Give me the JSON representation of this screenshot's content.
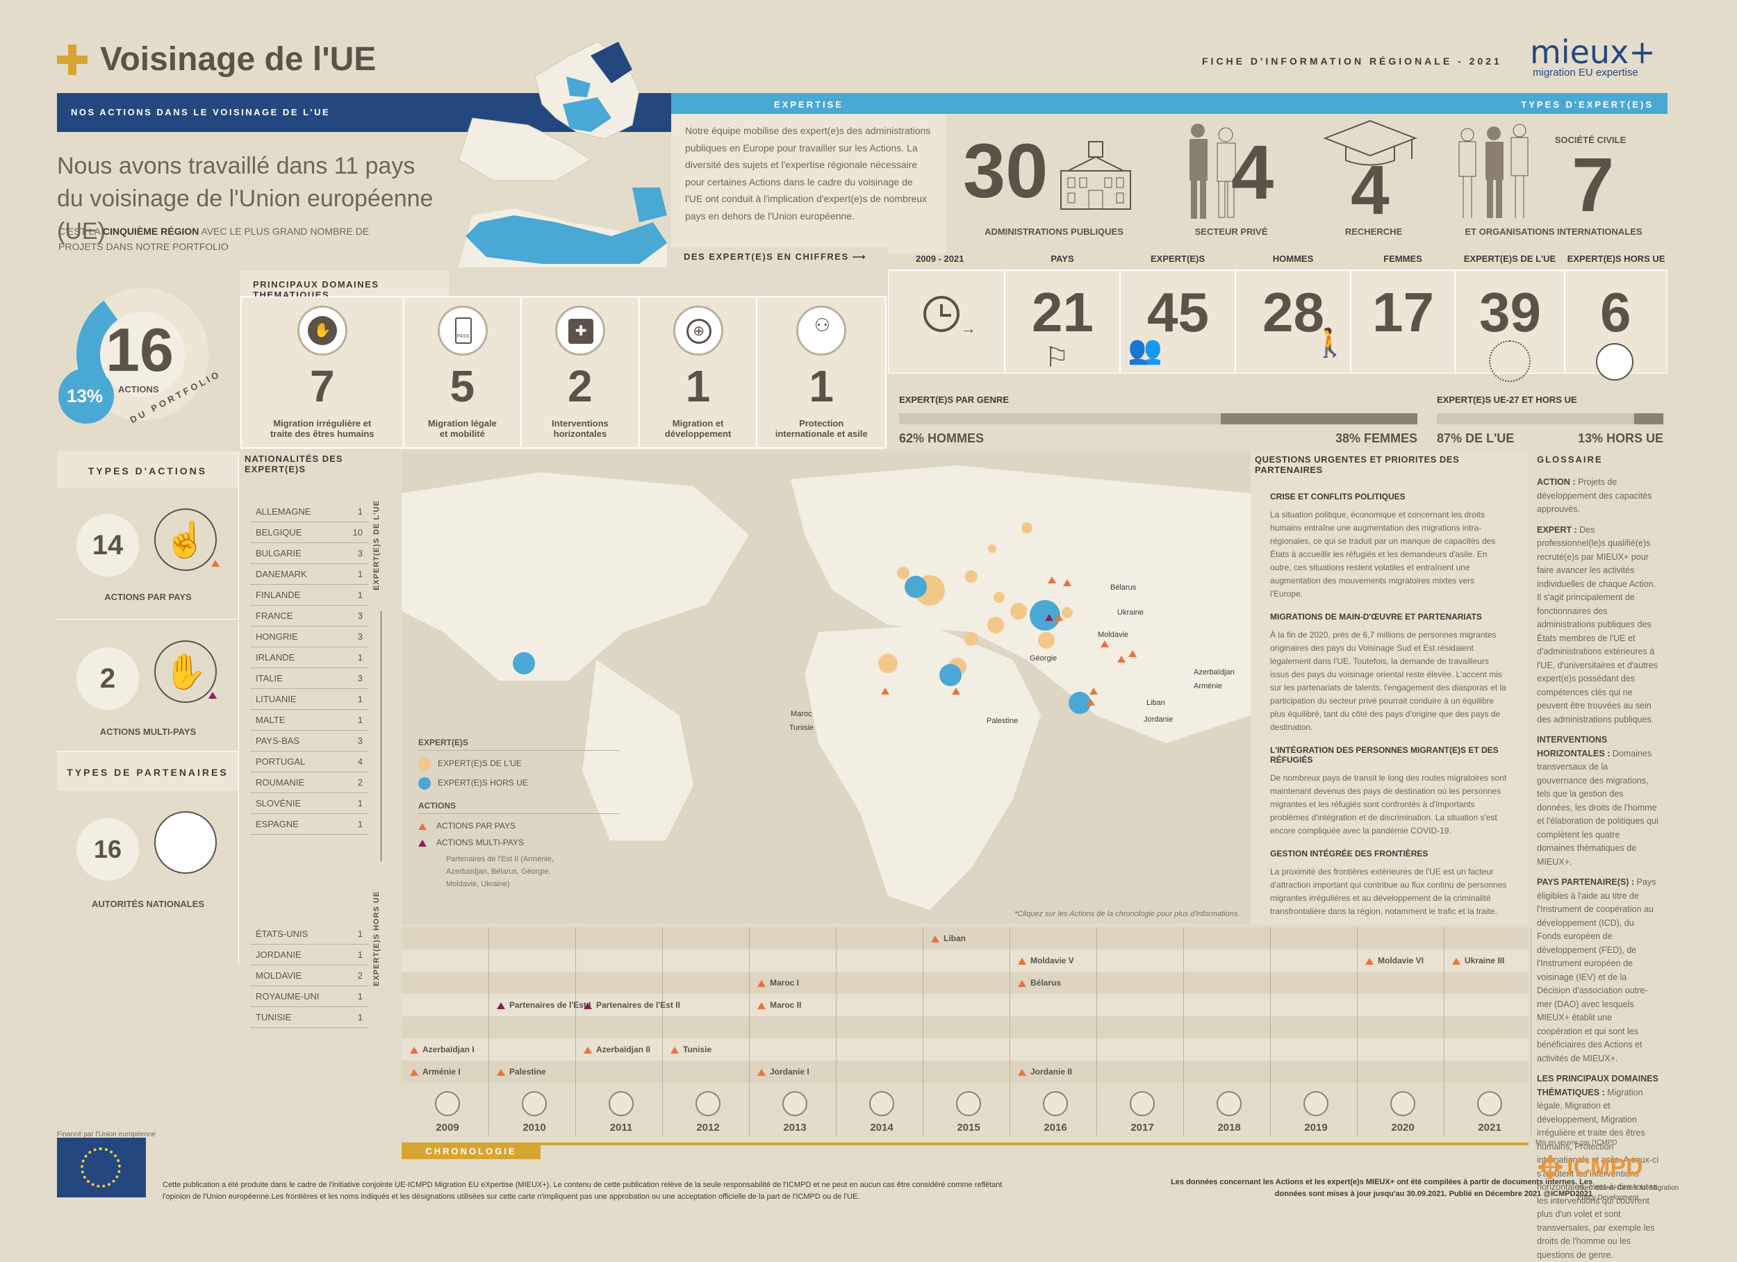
{
  "header": {
    "title": "Voisinage de l'UE",
    "fiche": "FICHE D'INFORMATION RÉGIONALE - 2021",
    "logo_text": "mieux+",
    "logo_sub": "migration EU expertise"
  },
  "intro": {
    "banner": "NOS ACTIONS DANS LE VOISINAGE DE L'UE",
    "headline": "Nous avons travaillé dans 11 pays du voisinage de l'Union européenne (UE)",
    "sub1": "C'EST LA ",
    "sub_bold": "CINQUIÈME RÉGION",
    "sub2": " AVEC LE PLUS GRAND NOMBRE DE PROJETS DANS NOTRE PORTFOLIO"
  },
  "expertise": {
    "title": "EXPERTISE",
    "text": "Notre équipe mobilise des expert(e)s des administrations publiques en Europe pour travailler sur les Actions. La diversité des sujets et l'expertise régionale nécessaire pour certaines Actions dans le cadre du voisinage de l'UE ont conduit à l'implication d'expert(e)s de nombreux pays en dehors de l'Union européenne.",
    "chiffres": "DES EXPERT(E)S EN CHIFFRES"
  },
  "types_experts": {
    "title": "TYPES D'EXPERT(E)S",
    "items": [
      {
        "value": "30",
        "label": "ADMINISTRATIONS PUBLIQUES"
      },
      {
        "value": "4",
        "label": "SECTEUR PRIVÉ"
      },
      {
        "value": "4",
        "label": "RECHERCHE"
      },
      {
        "value": "7",
        "label": "ET ORGANISATIONS INTERNATIONALES",
        "top": "SOCIÉTÉ CIVILE"
      }
    ]
  },
  "portfolio": {
    "value": "16",
    "label": "ACTIONS",
    "pct": "13%",
    "arc": "DU PORTFOLIO",
    "fraction": 0.13
  },
  "domaines": {
    "title": "PRINCIPAUX DOMAINES THEMATIQUES",
    "items": [
      {
        "value": "7",
        "label": "Migration irrégulière et traite des êtres humains",
        "icon": "stop-hand-icon"
      },
      {
        "value": "5",
        "label": "Migration légale et mobilité",
        "icon": "passport-icon"
      },
      {
        "value": "2",
        "label": "Interventions horizontales",
        "icon": "puzzle-icon"
      },
      {
        "value": "1",
        "label": "Migration et développement",
        "icon": "globe-cycle-icon"
      },
      {
        "value": "1",
        "label": "Protection internationale et asile",
        "icon": "family-hand-icon"
      }
    ]
  },
  "chiffres": {
    "period": "2009 - 2021",
    "cols": [
      {
        "label": "PAYS",
        "value": "21"
      },
      {
        "label": "EXPERT(E)S",
        "value": "45"
      },
      {
        "label": "HOMMES",
        "value": "28"
      },
      {
        "label": "FEMMES",
        "value": "17"
      },
      {
        "label": "EXPERT(E)S DE L'UE",
        "value": "39"
      },
      {
        "label": "EXPERT(E)S HORS UE",
        "value": "6"
      }
    ],
    "genre_title": "EXPERT(E)S PAR GENRE",
    "genre_left": "62% HOMMES",
    "genre_right": "38% FEMMES",
    "genre_frac": 0.62,
    "ue_title": "EXPERT(E)S UE-27 ET HORS UE",
    "ue_left": "87% DE L'UE",
    "ue_right": "13% HORS UE",
    "ue_frac": 0.87
  },
  "types_actions": {
    "title": "TYPES D'ACTIONS",
    "items": [
      {
        "value": "14",
        "label": "ACTIONS PAR PAYS"
      },
      {
        "value": "2",
        "label": "ACTIONS MULTI-PAYS"
      }
    ],
    "partners_title": "TYPES DE PARTENAIRES",
    "partners": {
      "value": "16",
      "label": "AUTORITÉS NATIONALES"
    }
  },
  "nationalites": {
    "title": "NATIONALITÉS DES EXPERT(E)S",
    "ue_label": "EXPERT(E)S DE L'UE",
    "hors_label": "EXPERT(E)S HORS UE",
    "ue": [
      [
        "ALLEMAGNE",
        "1"
      ],
      [
        "BELGIQUE",
        "10"
      ],
      [
        "BULGARIE",
        "3"
      ],
      [
        "DANEMARK",
        "1"
      ],
      [
        "FINLANDE",
        "1"
      ],
      [
        "FRANCE",
        "3"
      ],
      [
        "HONGRIE",
        "3"
      ],
      [
        "IRLANDE",
        "1"
      ],
      [
        "ITALIE",
        "3"
      ],
      [
        "LITUANIE",
        "1"
      ],
      [
        "MALTE",
        "1"
      ],
      [
        "PAYS-BAS",
        "3"
      ],
      [
        "PORTUGAL",
        "4"
      ],
      [
        "ROUMANIE",
        "2"
      ],
      [
        "SLOVÉNIE",
        "1"
      ],
      [
        "ESPAGNE",
        "1"
      ]
    ],
    "hors": [
      [
        "ÉTATS-UNIS",
        "1"
      ],
      [
        "JORDANIE",
        "1"
      ],
      [
        "MOLDAVIE",
        "2"
      ],
      [
        "ROYAUME-UNI",
        "1"
      ],
      [
        "TUNISIE",
        "1"
      ]
    ]
  },
  "map": {
    "legend_experts": "EXPERT(E)S",
    "legend_ue": "EXPERT(E)S DE L'UE",
    "legend_hors": "EXPERT(E)S HORS UE",
    "legend_actions": "ACTIONS",
    "legend_pays": "ACTIONS PAR PAYS",
    "legend_multi": "ACTIONS MULTI-PAYS",
    "legend_note": "Partenaires de l'Est II (Arménie, Azerbaïdjan, Bélarus, Géorgie, Moldavie, Ukraine)",
    "labels": [
      "Bélarus",
      "Ukraine",
      "Moldavie",
      "Géorgie",
      "Azerbaïdjan",
      "Arménie",
      "Liban",
      "Jordanie",
      "Palestine",
      "Maroc",
      "Tunisie"
    ],
    "footnote": "*Cliquez sur les Actions de la chronologie pour plus d'informations."
  },
  "questions": {
    "title": "QUESTIONS URGENTES ET PRIORITES DES PARTENAIRES",
    "sections": [
      {
        "h": "CRISE ET CONFLITS POLITIQUES",
        "t": "La situation politique, économique et concernant les droits humains entraîne une augmentation des migrations intra-régionales, ce qui se traduit par un manque de capacités des États à accueillir les réfugiés et les demandeurs d'asile. En outre, ces situations restent volatiles et entraînent une augmentation des mouvements migratoires mixtes vers l'Europe."
      },
      {
        "h": "MIGRATIONS DE MAIN-D'ŒUVRE ET PARTENARIATS",
        "t": "À la fin de 2020, près de 6,7 millions de personnes migrantes originaires des pays du Voisinage Sud et Est résidaient légalement dans l'UE. Toutefois, la demande de travailleurs issus des pays du voisinage oriental reste élevée. L'accent mis sur les partenariats de talents, l'engagement des diasporas et la participation du secteur privé pourrait conduire à un équilibre plus équilibré, tant du côté des pays d'origine que des pays de destination."
      },
      {
        "h": "L'INTÉGRATION DES PERSONNES MIGRANT(E)S ET DES RÉFUGIÉS",
        "t": "De nombreux pays de transit le long des routes migratoires sont maintenant devenus des pays de destination où les personnes migrantes et les réfugiés sont confrontés à d'importants problèmes d'intégration et de discrimination. La situation s'est encore compliquée avec la pandémie COVID-19."
      },
      {
        "h": "GESTION INTÉGRÉE DES FRONTIÈRES",
        "t": "La proximité des frontières extérieures de l'UE est un facteur d'attraction important qui contribue au flux continu de personnes migrantes irrégulières et au développement de la criminalité transfrontalière dans la région, notamment le trafic et la traite."
      }
    ]
  },
  "glossaire": {
    "title": "GLOSSAIRE",
    "entries": [
      {
        "k": "ACTION :",
        "v": " Projets de développement des capacités approuvés."
      },
      {
        "k": "EXPERT :",
        "v": " Des professionnel(le)s qualifié(e)s recruté(e)s par MIEUX+ pour faire avancer les activités individuelles de chaque Action. Il s'agit principalement de fonctionnaires des administrations publiques des États membres de l'UE et d'administrations extérieures à l'UE, d'universitaires et d'autres expert(e)s possédant des compétences clés qui ne peuvent être trouvées au sein des administrations publiques."
      },
      {
        "k": "INTERVENTIONS HORIZONTALES :",
        "v": " Domaines transversaux de la gouvernance des migrations, tels que la gestion des données, les droits de l'homme et l'élaboration de politiques qui complètent les quatre domaines thématiques de MIEUX+."
      },
      {
        "k": "PAYS PARTENAIRE(S) :",
        "v": " Pays éligibles à l'aide au titre de l'Instrument de coopération au développement (ICD), du Fonds européen de développement (FED), de l'Instrument européen de voisinage (IEV) et de la Décision d'association outre-mer (DAO) avec lesquels MIEUX+ établit une coopération et qui sont les bénéficiaires des Actions et activités de MIEUX+."
      },
      {
        "k": "LES PRINCIPAUX DOMAINES THÉMATIQUES :",
        "v": " Migration légale, Migration et développement, Migration irrégulière et traite des êtres humains, Protection internationale et asile. A ceux-ci s'ajoutent les interventions horizontales, c'est-à-dire toutes les interventions qui couvrent plus d'un volet et sont transversales, par exemple les droits de l'homme ou les questions de genre."
      }
    ]
  },
  "chronologie": {
    "title": "CHRONOLOGIE",
    "years": [
      "2009",
      "2010",
      "2011",
      "2012",
      "2013",
      "2014",
      "2015",
      "2016",
      "2017",
      "2018",
      "2019",
      "2020",
      "2021"
    ],
    "events": [
      {
        "year": 0,
        "row": 5,
        "label": "Azerbaïdjan I",
        "multi": false
      },
      {
        "year": 0,
        "row": 6,
        "label": "Arménie I",
        "multi": false
      },
      {
        "year": 1,
        "row": 3,
        "label": "Partenaires de l'Est I",
        "multi": true
      },
      {
        "year": 1,
        "row": 6,
        "label": "Palestine",
        "multi": false
      },
      {
        "year": 2,
        "row": 3,
        "label": "Partenaires de l'Est II",
        "multi": true
      },
      {
        "year": 2,
        "row": 5,
        "label": "Azerbaïdjan II",
        "multi": false
      },
      {
        "year": 3,
        "row": 5,
        "label": "Tunisie",
        "multi": false
      },
      {
        "year": 4,
        "row": 2,
        "label": "Maroc I",
        "multi": false
      },
      {
        "year": 4,
        "row": 3,
        "label": "Maroc II",
        "multi": false
      },
      {
        "year": 4,
        "row": 6,
        "label": "Jordanie I",
        "multi": false
      },
      {
        "year": 6,
        "row": 0,
        "label": "Liban",
        "multi": false
      },
      {
        "year": 7,
        "row": 1,
        "label": "Moldavie V",
        "multi": false
      },
      {
        "year": 7,
        "row": 2,
        "label": "Bélarus",
        "multi": false
      },
      {
        "year": 7,
        "row": 6,
        "label": "Jordanie II",
        "multi": false
      },
      {
        "year": 11,
        "row": 1,
        "label": "Moldavie VI",
        "multi": false
      },
      {
        "year": 12,
        "row": 1,
        "label": "Ukraine III",
        "multi": false
      }
    ]
  },
  "footer": {
    "funded": "Financé par l'Union européenne",
    "disclaimer": "Cette publication a été produite dans le cadre de l'initiative conjointe UE-ICMPD Migration EU eXpertise (MIEUX+). Le contenu de cette publication relève de la seule responsabilité de l'ICMPD et ne peut en aucun cas être considéré comme reflétant l'opinion de l'Union européenne.Les frontières et les noms indiqués et les désignations utilisées sur cette carte n'impliquent pas une approbation ou une acceptation officielle de la part de l'ICMPD ou de l'UE.",
    "data_note": "Les données concernant les Actions et les expert(e)s MIEUX+ ont été compilées à partir de documents internes. Les données sont mises à jour jusqu'au 30.09.2021. Publié en Décembre 2021 @ICMPD2021",
    "mis_en": "Mis en œuvre par l'ICMPD",
    "icmpd": "ICMPD",
    "icmpd_sub": "International Centre for Migration Policy Development"
  },
  "colors": {
    "navy": "#24477f",
    "blue": "#4aa8d4",
    "gold": "#d6a431",
    "orange": "#e8743b",
    "purple": "#8b2350",
    "text": "#5b5348"
  }
}
